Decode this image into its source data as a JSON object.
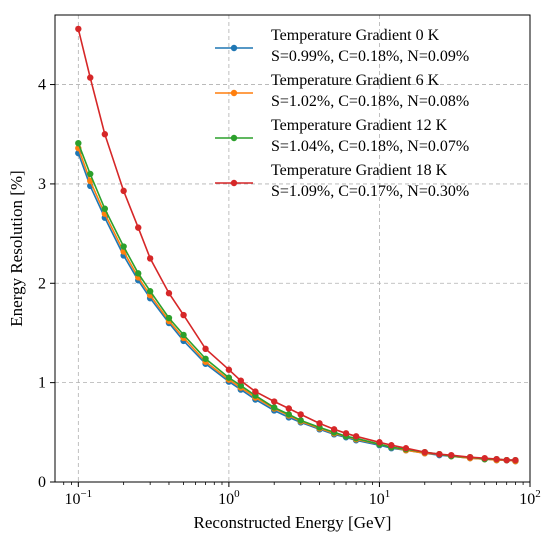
{
  "chart_data": {
    "type": "line",
    "xlabel": "Reconstructed Energy [GeV]",
    "ylabel": "Energy Resolution [%]",
    "xscale": "log",
    "xlim": [
      0.07,
      100
    ],
    "ylim": [
      0,
      4.7
    ],
    "grid": true,
    "legend_position": "top-right",
    "xticks": [
      {
        "value": 0.1,
        "base": "10",
        "exp": "−1"
      },
      {
        "value": 1,
        "base": "10",
        "exp": "0"
      },
      {
        "value": 10,
        "base": "10",
        "exp": "1"
      },
      {
        "value": 100,
        "base": "10",
        "exp": "2"
      }
    ],
    "yticks": [
      0,
      1,
      2,
      3,
      4
    ],
    "x": [
      0.1,
      0.12,
      0.15,
      0.2,
      0.25,
      0.3,
      0.4,
      0.5,
      0.7,
      1.0,
      1.2,
      1.5,
      2.0,
      2.5,
      3.0,
      4.0,
      5.0,
      6.0,
      7.0,
      10.0,
      12.0,
      15.0,
      20.0,
      25.0,
      30.0,
      40.0,
      50.0,
      60.0,
      70.0,
      80.0
    ],
    "series": [
      {
        "name": "Temperature Gradient 0 K",
        "name2": "S=0.99%, C=0.18%, N=0.09%",
        "color": "#1f77b4",
        "values": [
          3.31,
          2.98,
          2.66,
          2.28,
          2.03,
          1.85,
          1.6,
          1.42,
          1.19,
          1.01,
          0.93,
          0.83,
          0.72,
          0.65,
          0.6,
          0.53,
          0.48,
          0.45,
          0.42,
          0.37,
          0.34,
          0.32,
          0.29,
          0.27,
          0.26,
          0.24,
          0.23,
          0.22,
          0.22,
          0.21
        ]
      },
      {
        "name": "Temperature Gradient 6 K",
        "name2": "S=1.02%, C=0.18%, N=0.08%",
        "color": "#ff7f0e",
        "values": [
          3.36,
          3.03,
          2.7,
          2.32,
          2.06,
          1.88,
          1.62,
          1.45,
          1.21,
          1.03,
          0.95,
          0.85,
          0.74,
          0.67,
          0.61,
          0.54,
          0.49,
          0.46,
          0.43,
          0.38,
          0.35,
          0.32,
          0.29,
          0.28,
          0.26,
          0.24,
          0.23,
          0.22,
          0.22,
          0.21
        ]
      },
      {
        "name": "Temperature Gradient 12 K",
        "name2": "S=1.04%, C=0.18%, N=0.07%",
        "color": "#2ca02c",
        "values": [
          3.41,
          3.1,
          2.75,
          2.37,
          2.1,
          1.92,
          1.65,
          1.48,
          1.24,
          1.05,
          0.97,
          0.87,
          0.75,
          0.68,
          0.62,
          0.55,
          0.5,
          0.46,
          0.44,
          0.38,
          0.35,
          0.33,
          0.3,
          0.28,
          0.26,
          0.25,
          0.23,
          0.23,
          0.22,
          0.22
        ]
      },
      {
        "name": "Temperature Gradient 18 K",
        "name2": "S=1.09%, C=0.17%, N=0.30%",
        "color": "#d62728",
        "values": [
          4.56,
          4.07,
          3.5,
          2.93,
          2.56,
          2.25,
          1.9,
          1.68,
          1.34,
          1.13,
          1.02,
          0.91,
          0.81,
          0.74,
          0.68,
          0.59,
          0.53,
          0.49,
          0.46,
          0.4,
          0.37,
          0.34,
          0.3,
          0.28,
          0.27,
          0.25,
          0.24,
          0.23,
          0.22,
          0.22
        ]
      }
    ]
  }
}
